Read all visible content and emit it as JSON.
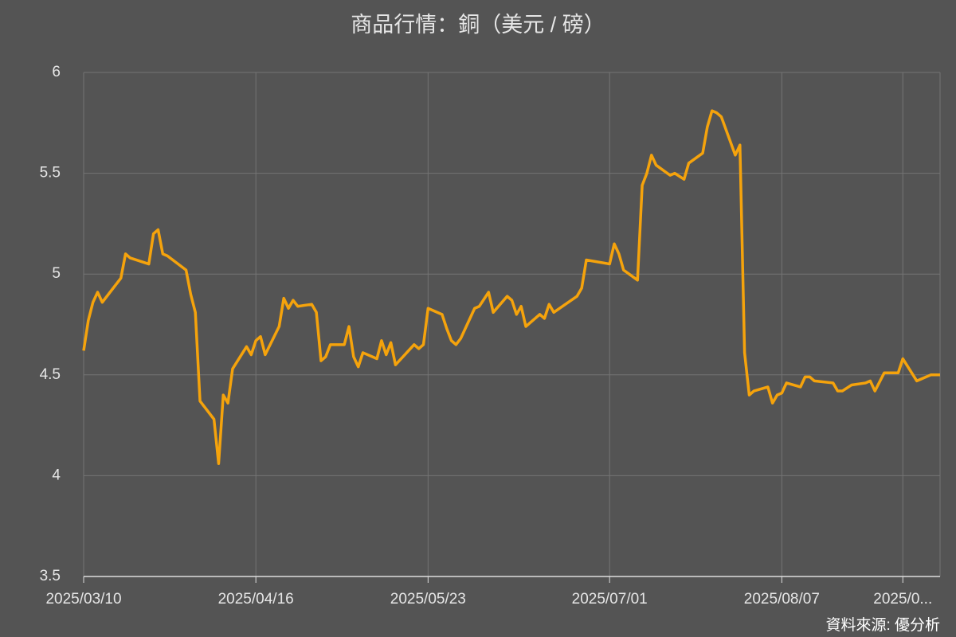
{
  "chart_data": {
    "type": "line",
    "title": "商品行情：銅（美元 / 磅）",
    "source": "資料來源: 優分析",
    "x": [
      "2025/03/10",
      "2025/03/11",
      "2025/03/12",
      "2025/03/13",
      "2025/03/14",
      "2025/03/18",
      "2025/03/19",
      "2025/03/20",
      "2025/03/24",
      "2025/03/25",
      "2025/03/26",
      "2025/03/27",
      "2025/03/28",
      "2025/04/01",
      "2025/04/02",
      "2025/04/03",
      "2025/04/04",
      "2025/04/07",
      "2025/04/08",
      "2025/04/09",
      "2025/04/10",
      "2025/04/11",
      "2025/04/14",
      "2025/04/15",
      "2025/04/16",
      "2025/04/17",
      "2025/04/18",
      "2025/04/21",
      "2025/04/22",
      "2025/04/23",
      "2025/04/24",
      "2025/04/25",
      "2025/04/28",
      "2025/04/29",
      "2025/04/30",
      "2025/05/01",
      "2025/05/02",
      "2025/05/05",
      "2025/05/06",
      "2025/05/07",
      "2025/05/08",
      "2025/05/09",
      "2025/05/12",
      "2025/05/13",
      "2025/05/14",
      "2025/05/15",
      "2025/05/16",
      "2025/05/20",
      "2025/05/21",
      "2025/05/22",
      "2025/05/23",
      "2025/05/26",
      "2025/05/27",
      "2025/05/28",
      "2025/05/29",
      "2025/05/30",
      "2025/06/02",
      "2025/06/03",
      "2025/06/05",
      "2025/06/06",
      "2025/06/09",
      "2025/06/10",
      "2025/06/11",
      "2025/06/12",
      "2025/06/13",
      "2025/06/16",
      "2025/06/17",
      "2025/06/18",
      "2025/06/19",
      "2025/06/24",
      "2025/06/25",
      "2025/06/26",
      "2025/07/01",
      "2025/07/02",
      "2025/07/03",
      "2025/07/04",
      "2025/07/07",
      "2025/07/08",
      "2025/07/09",
      "2025/07/10",
      "2025/07/11",
      "2025/07/14",
      "2025/07/15",
      "2025/07/17",
      "2025/07/18",
      "2025/07/21",
      "2025/07/22",
      "2025/07/23",
      "2025/07/24",
      "2025/07/25",
      "2025/07/28",
      "2025/07/29",
      "2025/07/30",
      "2025/07/31",
      "2025/08/01",
      "2025/08/04",
      "2025/08/05",
      "2025/08/06",
      "2025/08/07",
      "2025/08/08",
      "2025/08/11",
      "2025/08/12",
      "2025/08/13",
      "2025/08/14",
      "2025/08/18",
      "2025/08/19",
      "2025/08/20",
      "2025/08/22",
      "2025/08/25",
      "2025/08/26",
      "2025/08/27",
      "2025/08/29",
      "2025/09/01",
      "2025/09/02",
      "2025/09/05",
      "2025/09/06",
      "2025/09/08",
      "2025/09/10"
    ],
    "series": [
      {
        "name": "銅",
        "color": "#f5a30c",
        "values": [
          4.62,
          4.77,
          4.86,
          4.91,
          4.86,
          4.98,
          5.1,
          5.08,
          5.05,
          5.2,
          5.22,
          5.1,
          5.09,
          5.02,
          4.9,
          4.81,
          4.37,
          4.28,
          4.06,
          4.4,
          4.36,
          4.53,
          4.64,
          4.6,
          4.67,
          4.69,
          4.6,
          4.74,
          4.88,
          4.83,
          4.87,
          4.84,
          4.85,
          4.81,
          4.57,
          4.59,
          4.65,
          4.65,
          4.74,
          4.59,
          4.54,
          4.61,
          4.58,
          4.67,
          4.6,
          4.66,
          4.55,
          4.65,
          4.63,
          4.65,
          4.83,
          4.8,
          4.73,
          4.67,
          4.65,
          4.68,
          4.83,
          4.84,
          4.91,
          4.81,
          4.89,
          4.87,
          4.8,
          4.84,
          4.74,
          4.8,
          4.78,
          4.85,
          4.81,
          4.89,
          4.93,
          5.07,
          5.05,
          5.15,
          5.1,
          5.02,
          4.97,
          5.44,
          5.5,
          5.59,
          5.54,
          5.49,
          5.5,
          5.47,
          5.55,
          5.6,
          5.73,
          5.81,
          5.8,
          5.78,
          5.59,
          5.64,
          4.61,
          4.4,
          4.42,
          4.44,
          4.36,
          4.4,
          4.41,
          4.46,
          4.44,
          4.49,
          4.49,
          4.47,
          4.46,
          4.42,
          4.42,
          4.45,
          4.46,
          4.47,
          4.42,
          4.51,
          4.51,
          4.58,
          4.47,
          4.48,
          4.5,
          4.5
        ]
      }
    ],
    "xlim": [
      "2025/03/10",
      "2025/09/10"
    ],
    "xticks": [
      "2025/03/10",
      "2025/04/16",
      "2025/05/23",
      "2025/07/01",
      "2025/08/07",
      {
        "value": "2025/09/02",
        "label": "2025/0..."
      }
    ],
    "ylim": [
      3.5,
      6
    ],
    "yticks": [
      3.5,
      4,
      4.5,
      5,
      5.5,
      6
    ],
    "grid": true
  }
}
